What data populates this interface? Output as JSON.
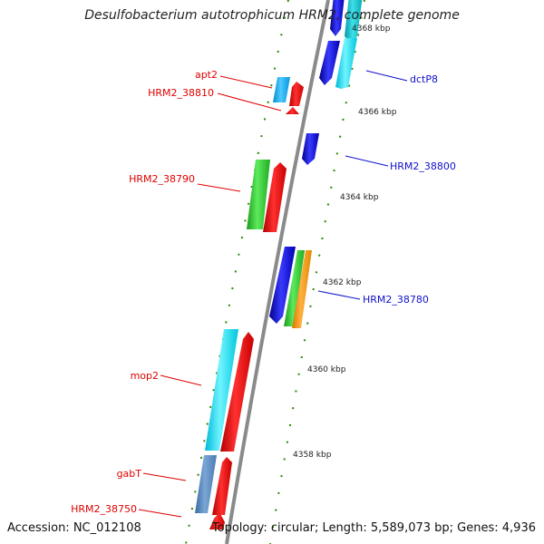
{
  "title": "Desulfobacterium autotrophicum HRM2, complete genome",
  "accession": "Accession: NC_012108",
  "topology": "Topology: circular; Length: 5,589,073 bp; Genes: 4,936",
  "colors": {
    "red": "#e00000",
    "blue": "#1010cc",
    "green": "#2a8a00",
    "backbone": "#8a8a8a"
  },
  "genes_left": [
    {
      "label": "apt2"
    },
    {
      "label": "HRM2_38810"
    },
    {
      "label": "HRM2_38790"
    },
    {
      "label": "mop2"
    },
    {
      "label": "gabT"
    },
    {
      "label": "HRM2_38750"
    }
  ],
  "genes_right": [
    {
      "label": "dctP8"
    },
    {
      "label": "HRM2_38800"
    },
    {
      "label": "HRM2_38780"
    }
  ],
  "position_ticks": [
    {
      "label": "4368 kbp"
    },
    {
      "label": "4366 kbp"
    },
    {
      "label": "4364 kbp"
    },
    {
      "label": "4362 kbp"
    },
    {
      "label": "4360 kbp"
    },
    {
      "label": "4358 kbp"
    }
  ]
}
